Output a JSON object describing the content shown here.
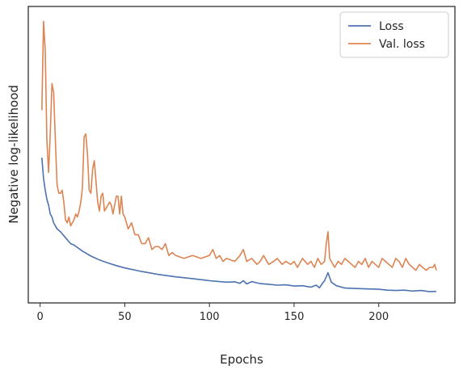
{
  "chart_data": {
    "type": "line",
    "title": "",
    "xlabel": "Epochs",
    "ylabel": "Negative log-likelihood",
    "xlim": [
      -7,
      245
    ],
    "ylim": [
      0,
      100
    ],
    "xticks": [
      0,
      50,
      100,
      150,
      200
    ],
    "xtick_labels": [
      "0",
      "50",
      "100",
      "150",
      "200"
    ],
    "y_tick_labels_shown": false,
    "grid": false,
    "legend_position": "top-right",
    "series": [
      {
        "name": "Loss",
        "color": "#4c72b0",
        "x": [
          1,
          2,
          3,
          4,
          5,
          6,
          7,
          8,
          10,
          12,
          15,
          18,
          20,
          25,
          30,
          35,
          40,
          45,
          50,
          60,
          70,
          80,
          90,
          100,
          110,
          115,
          118,
          120,
          122,
          125,
          130,
          135,
          140,
          145,
          150,
          155,
          160,
          163,
          165,
          167,
          168,
          170,
          172,
          175,
          180,
          190,
          200,
          205,
          210,
          215,
          220,
          225,
          230,
          234
        ],
        "values": [
          49,
          42,
          38,
          35,
          33,
          30,
          29,
          27,
          25,
          24,
          22,
          20,
          19.5,
          17.5,
          15.8,
          14.5,
          13.5,
          12.6,
          11.8,
          10.6,
          9.6,
          8.8,
          8.2,
          7.5,
          7.0,
          7.1,
          6.6,
          7.5,
          6.4,
          7.2,
          6.5,
          6.3,
          6.0,
          6.1,
          5.7,
          5.8,
          5.3,
          6.0,
          5.1,
          6.8,
          7.5,
          10.2,
          7.0,
          5.8,
          5.0,
          4.8,
          4.6,
          4.3,
          4.2,
          4.3,
          4.0,
          4.2,
          3.8,
          3.9
        ]
      },
      {
        "name": "Val. loss",
        "color": "#dd8452",
        "x": [
          1,
          2,
          3,
          4,
          5,
          6,
          7,
          8,
          9,
          10,
          11,
          12,
          13,
          14,
          15,
          16,
          17,
          18,
          19,
          20,
          21,
          22,
          23,
          24,
          25,
          26,
          27,
          28,
          29,
          30,
          31,
          32,
          33,
          34,
          35,
          36,
          37,
          38,
          39,
          40,
          41,
          42,
          43,
          44,
          45,
          46,
          47,
          48,
          49,
          50,
          52,
          54,
          56,
          58,
          60,
          62,
          64,
          66,
          68,
          70,
          72,
          74,
          76,
          78,
          80,
          85,
          90,
          95,
          100,
          102,
          104,
          106,
          108,
          110,
          115,
          118,
          120,
          122,
          125,
          128,
          130,
          132,
          135,
          138,
          140,
          143,
          145,
          148,
          150,
          152,
          155,
          158,
          160,
          162,
          164,
          166,
          168,
          169,
          170,
          171,
          172,
          174,
          176,
          178,
          180,
          182,
          184,
          186,
          188,
          190,
          192,
          194,
          196,
          198,
          200,
          202,
          204,
          206,
          208,
          210,
          212,
          214,
          216,
          218,
          220,
          222,
          224,
          226,
          228,
          230,
          232,
          233,
          234
        ],
        "values": [
          65,
          95,
          85,
          55,
          44,
          57,
          74,
          71,
          55,
          40,
          37,
          37,
          38,
          34,
          28,
          27,
          29,
          26,
          27,
          28,
          30,
          29,
          31,
          34,
          39,
          56,
          57,
          50,
          38,
          37,
          45,
          48,
          41,
          34,
          31,
          36,
          37,
          31,
          32,
          33,
          34,
          33,
          30,
          33,
          36,
          36,
          30,
          36,
          30,
          29,
          25,
          27,
          23,
          23,
          20,
          20,
          22,
          18,
          19,
          19,
          18,
          20,
          16,
          17,
          16,
          15,
          16,
          15,
          16,
          18,
          15,
          16,
          14,
          15,
          14,
          16,
          18,
          14,
          15,
          13,
          14,
          16,
          13,
          14,
          15,
          13,
          14,
          13,
          14,
          12,
          15,
          13,
          14,
          12,
          15,
          13,
          14,
          20,
          24,
          15,
          14,
          12,
          14,
          13,
          15,
          14,
          13,
          12,
          14,
          13,
          15,
          12,
          14,
          13,
          12,
          15,
          14,
          13,
          12,
          15,
          14,
          12,
          15,
          13,
          12,
          11,
          13,
          12,
          11,
          12,
          12,
          13,
          11
        ]
      }
    ]
  }
}
